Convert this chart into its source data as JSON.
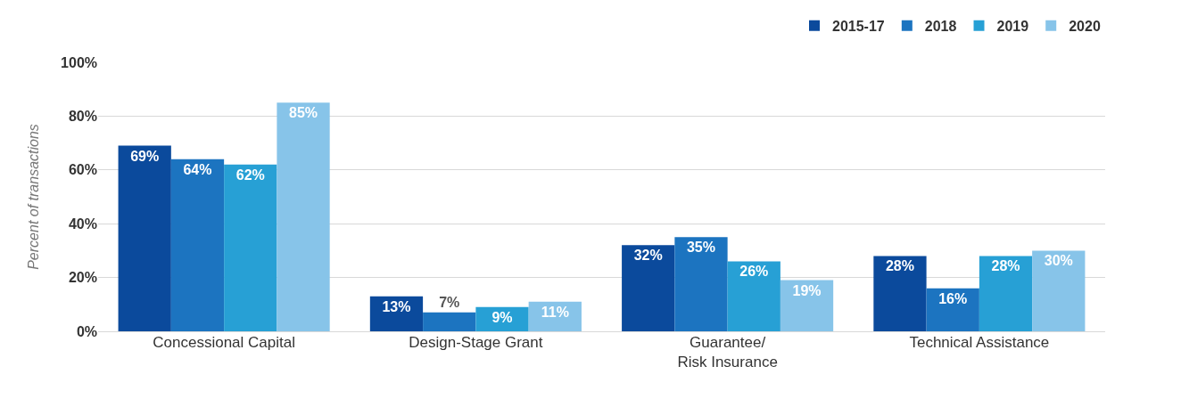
{
  "chart_data": {
    "type": "bar",
    "ylabel": "Percent of transactions",
    "categories": [
      "Concessional Capital",
      "Design-Stage Grant",
      "Guarantee/\nRisk Insurance",
      "Technical Assistance"
    ],
    "series": [
      {
        "name": "2015-17",
        "color": "#0b4a9c",
        "values": [
          69,
          13,
          32,
          28
        ],
        "value_labels": [
          "69%",
          "13%",
          "32%",
          "28%"
        ]
      },
      {
        "name": "2018",
        "color": "#1c74c0",
        "values": [
          64,
          7,
          35,
          16
        ],
        "value_labels": [
          "64%",
          "7%",
          "35%",
          "16%"
        ]
      },
      {
        "name": "2019",
        "color": "#27a0d5",
        "values": [
          62,
          9,
          26,
          28
        ],
        "value_labels": [
          "62%",
          "9%",
          "26%",
          "28%"
        ]
      },
      {
        "name": "2020",
        "color": "#87c4e9",
        "values": [
          85,
          11,
          19,
          30
        ],
        "value_labels": [
          "85%",
          "11%",
          "19%",
          "30%"
        ]
      }
    ],
    "ylim": [
      0,
      100
    ],
    "yticks": [
      {
        "value": 0,
        "label": "0%"
      },
      {
        "value": 20,
        "label": "20%"
      },
      {
        "value": 40,
        "label": "40%"
      },
      {
        "value": 60,
        "label": "60%"
      },
      {
        "value": 80,
        "label": "80%"
      },
      {
        "value": 100,
        "label": "100%"
      }
    ],
    "grid": "y",
    "legend": "top right"
  }
}
